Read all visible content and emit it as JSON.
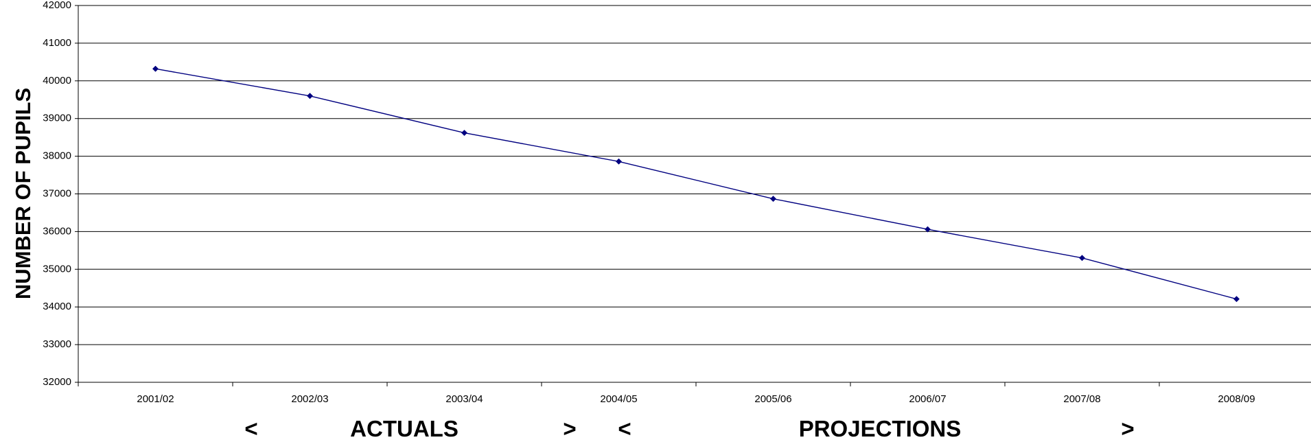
{
  "chart_data": {
    "type": "line",
    "title": "",
    "xlabel": "",
    "ylabel": "NUMBER OF PUPILS",
    "categories": [
      "2001/02",
      "2002/03",
      "2003/04",
      "2004/05",
      "2005/06",
      "2006/07",
      "2007/08",
      "2008/09"
    ],
    "series": [
      {
        "values": [
          40320,
          39600,
          38620,
          37860,
          36870,
          36060,
          35300,
          34210
        ]
      }
    ],
    "ylim": [
      32000,
      42000
    ],
    "yticks": [
      "32000",
      "33000",
      "34000",
      "35000",
      "36000",
      "37000",
      "38000",
      "39000",
      "40000",
      "41000",
      "42000"
    ],
    "grid": true,
    "legend": "none",
    "annotations": {
      "actuals_open": "<",
      "actuals_label": "ACTUALS",
      "actuals_close": ">",
      "projections_open": "<",
      "projections_label": "PROJECTIONS",
      "projections_close": ">"
    },
    "colors": {
      "line": "#000080",
      "grid": "#000000",
      "axis": "#000000"
    }
  }
}
